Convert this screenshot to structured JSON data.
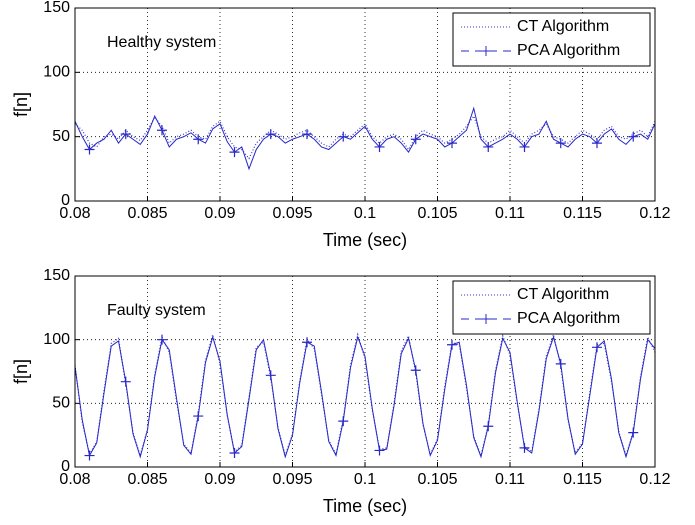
{
  "chart_data": [
    {
      "type": "line",
      "annotation": "Healthy system",
      "xlabel": "Time (sec)",
      "ylabel": "f[n]",
      "xlim": [
        0.08,
        0.12
      ],
      "xticks": [
        0.08,
        0.085,
        0.09,
        0.095,
        0.1,
        0.105,
        0.11,
        0.115,
        0.12
      ],
      "ylim": [
        0,
        150
      ],
      "yticks": [
        0,
        50,
        100,
        150
      ],
      "grid": true,
      "legend": "upper right",
      "x": [
        0.08,
        0.0805,
        0.081,
        0.0815,
        0.082,
        0.0825,
        0.083,
        0.0835,
        0.084,
        0.0845,
        0.085,
        0.0855,
        0.086,
        0.0865,
        0.087,
        0.0875,
        0.088,
        0.0885,
        0.089,
        0.0895,
        0.09,
        0.0905,
        0.091,
        0.0915,
        0.092,
        0.0925,
        0.093,
        0.0935,
        0.094,
        0.0945,
        0.095,
        0.0955,
        0.096,
        0.0965,
        0.097,
        0.0975,
        0.098,
        0.0985,
        0.099,
        0.0995,
        0.1,
        0.1005,
        0.101,
        0.1015,
        0.102,
        0.1025,
        0.103,
        0.1035,
        0.104,
        0.1045,
        0.105,
        0.1055,
        0.106,
        0.1065,
        0.107,
        0.1075,
        0.108,
        0.1085,
        0.109,
        0.1095,
        0.11,
        0.1105,
        0.111,
        0.1115,
        0.112,
        0.1125,
        0.113,
        0.1135,
        0.114,
        0.1145,
        0.115,
        0.1155,
        0.116,
        0.1165,
        0.117,
        0.1175,
        0.118,
        0.1185,
        0.119,
        0.1195,
        0.12
      ],
      "series": [
        {
          "name": "CT Algorithm",
          "color": "#3a3acc",
          "linestyle": "dotted",
          "marker": null,
          "values": [
            60,
            55,
            45,
            42,
            50,
            52,
            48,
            55,
            50,
            47,
            55,
            65,
            58,
            45,
            50,
            52,
            55,
            50,
            48,
            58,
            62,
            50,
            42,
            40,
            33,
            45,
            50,
            55,
            52,
            48,
            50,
            53,
            55,
            50,
            45,
            42,
            48,
            52,
            50,
            55,
            60,
            50,
            45,
            50,
            52,
            48,
            40,
            50,
            55,
            52,
            50,
            45,
            48,
            52,
            58,
            66,
            50,
            45,
            48,
            50,
            55,
            50,
            45,
            52,
            55,
            60,
            50,
            48,
            45,
            50,
            55,
            52,
            48,
            55,
            58,
            50,
            48,
            52,
            55,
            50,
            62
          ]
        },
        {
          "name": "PCA Algorithm",
          "color": "#2828c8",
          "linestyle": "solid",
          "marker": "+",
          "values": [
            62,
            50,
            40,
            45,
            48,
            55,
            45,
            52,
            48,
            44,
            52,
            66,
            55,
            42,
            48,
            50,
            53,
            48,
            45,
            56,
            60,
            46,
            38,
            42,
            25,
            40,
            48,
            52,
            50,
            45,
            48,
            50,
            52,
            48,
            42,
            40,
            45,
            50,
            48,
            53,
            58,
            48,
            42,
            48,
            50,
            45,
            38,
            48,
            52,
            50,
            48,
            42,
            45,
            50,
            55,
            72,
            48,
            42,
            45,
            48,
            52,
            48,
            42,
            50,
            52,
            62,
            48,
            45,
            42,
            48,
            52,
            50,
            45,
            52,
            56,
            48,
            44,
            50,
            52,
            48,
            60
          ]
        }
      ]
    },
    {
      "type": "line",
      "annotation": "Faulty system",
      "xlabel": "Time (sec)",
      "ylabel": "f[n]",
      "xlim": [
        0.08,
        0.12
      ],
      "xticks": [
        0.08,
        0.085,
        0.09,
        0.095,
        0.1,
        0.105,
        0.11,
        0.115,
        0.12
      ],
      "ylim": [
        0,
        150
      ],
      "yticks": [
        0,
        50,
        100,
        150
      ],
      "grid": true,
      "legend": "upper right",
      "x": [
        0.08,
        0.0805,
        0.081,
        0.0815,
        0.082,
        0.0825,
        0.083,
        0.0835,
        0.084,
        0.0845,
        0.085,
        0.0855,
        0.086,
        0.0865,
        0.087,
        0.0875,
        0.088,
        0.0885,
        0.089,
        0.0895,
        0.09,
        0.0905,
        0.091,
        0.0915,
        0.092,
        0.0925,
        0.093,
        0.0935,
        0.094,
        0.0945,
        0.095,
        0.0955,
        0.096,
        0.0965,
        0.097,
        0.0975,
        0.098,
        0.0985,
        0.099,
        0.0995,
        0.1,
        0.1005,
        0.101,
        0.1015,
        0.102,
        0.1025,
        0.103,
        0.1035,
        0.104,
        0.1045,
        0.105,
        0.1055,
        0.106,
        0.1065,
        0.107,
        0.1075,
        0.108,
        0.1085,
        0.109,
        0.1095,
        0.11,
        0.1105,
        0.111,
        0.1115,
        0.112,
        0.1125,
        0.113,
        0.1135,
        0.114,
        0.1145,
        0.115,
        0.1155,
        0.116,
        0.1165,
        0.117,
        0.1175,
        0.118,
        0.1185,
        0.119,
        0.1195,
        0.12
      ],
      "series": [
        {
          "name": "CT Algorithm",
          "color": "#3a3acc",
          "linestyle": "dotted",
          "marker": null,
          "values": [
            80,
            35,
            10,
            20,
            60,
            97,
            101,
            65,
            27,
            9,
            30,
            73,
            102,
            90,
            52,
            18,
            11,
            42,
            84,
            104,
            81,
            40,
            12,
            17,
            55,
            94,
            98,
            70,
            31,
            9,
            26,
            68,
            100,
            93,
            57,
            21,
            10,
            38,
            80,
            104,
            85,
            45,
            14,
            15,
            50,
            91,
            103,
            74,
            33,
            10,
            22,
            63,
            98,
            96,
            62,
            24,
            9,
            33,
            76,
            103,
            88,
            50,
            16,
            12,
            46,
            87,
            104,
            79,
            37,
            11,
            19,
            58,
            96,
            97,
            67,
            28,
            9,
            28,
            71,
            102,
            90
          ]
        },
        {
          "name": "PCA Algorithm",
          "color": "#2828c8",
          "linestyle": "solid",
          "marker": "+",
          "values": [
            79,
            37,
            9,
            19,
            58,
            95,
            99,
            67,
            26,
            8,
            29,
            71,
            100,
            92,
            54,
            17,
            10,
            40,
            82,
            102,
            83,
            41,
            11,
            16,
            53,
            92,
            100,
            72,
            30,
            8,
            25,
            66,
            98,
            95,
            59,
            20,
            9,
            36,
            78,
            102,
            87,
            46,
            13,
            14,
            48,
            89,
            101,
            76,
            34,
            9,
            21,
            61,
            96,
            98,
            64,
            23,
            8,
            32,
            74,
            101,
            90,
            51,
            15,
            11,
            44,
            85,
            102,
            81,
            38,
            10,
            18,
            56,
            94,
            99,
            69,
            27,
            8,
            27,
            69,
            100,
            93
          ]
        }
      ]
    }
  ]
}
